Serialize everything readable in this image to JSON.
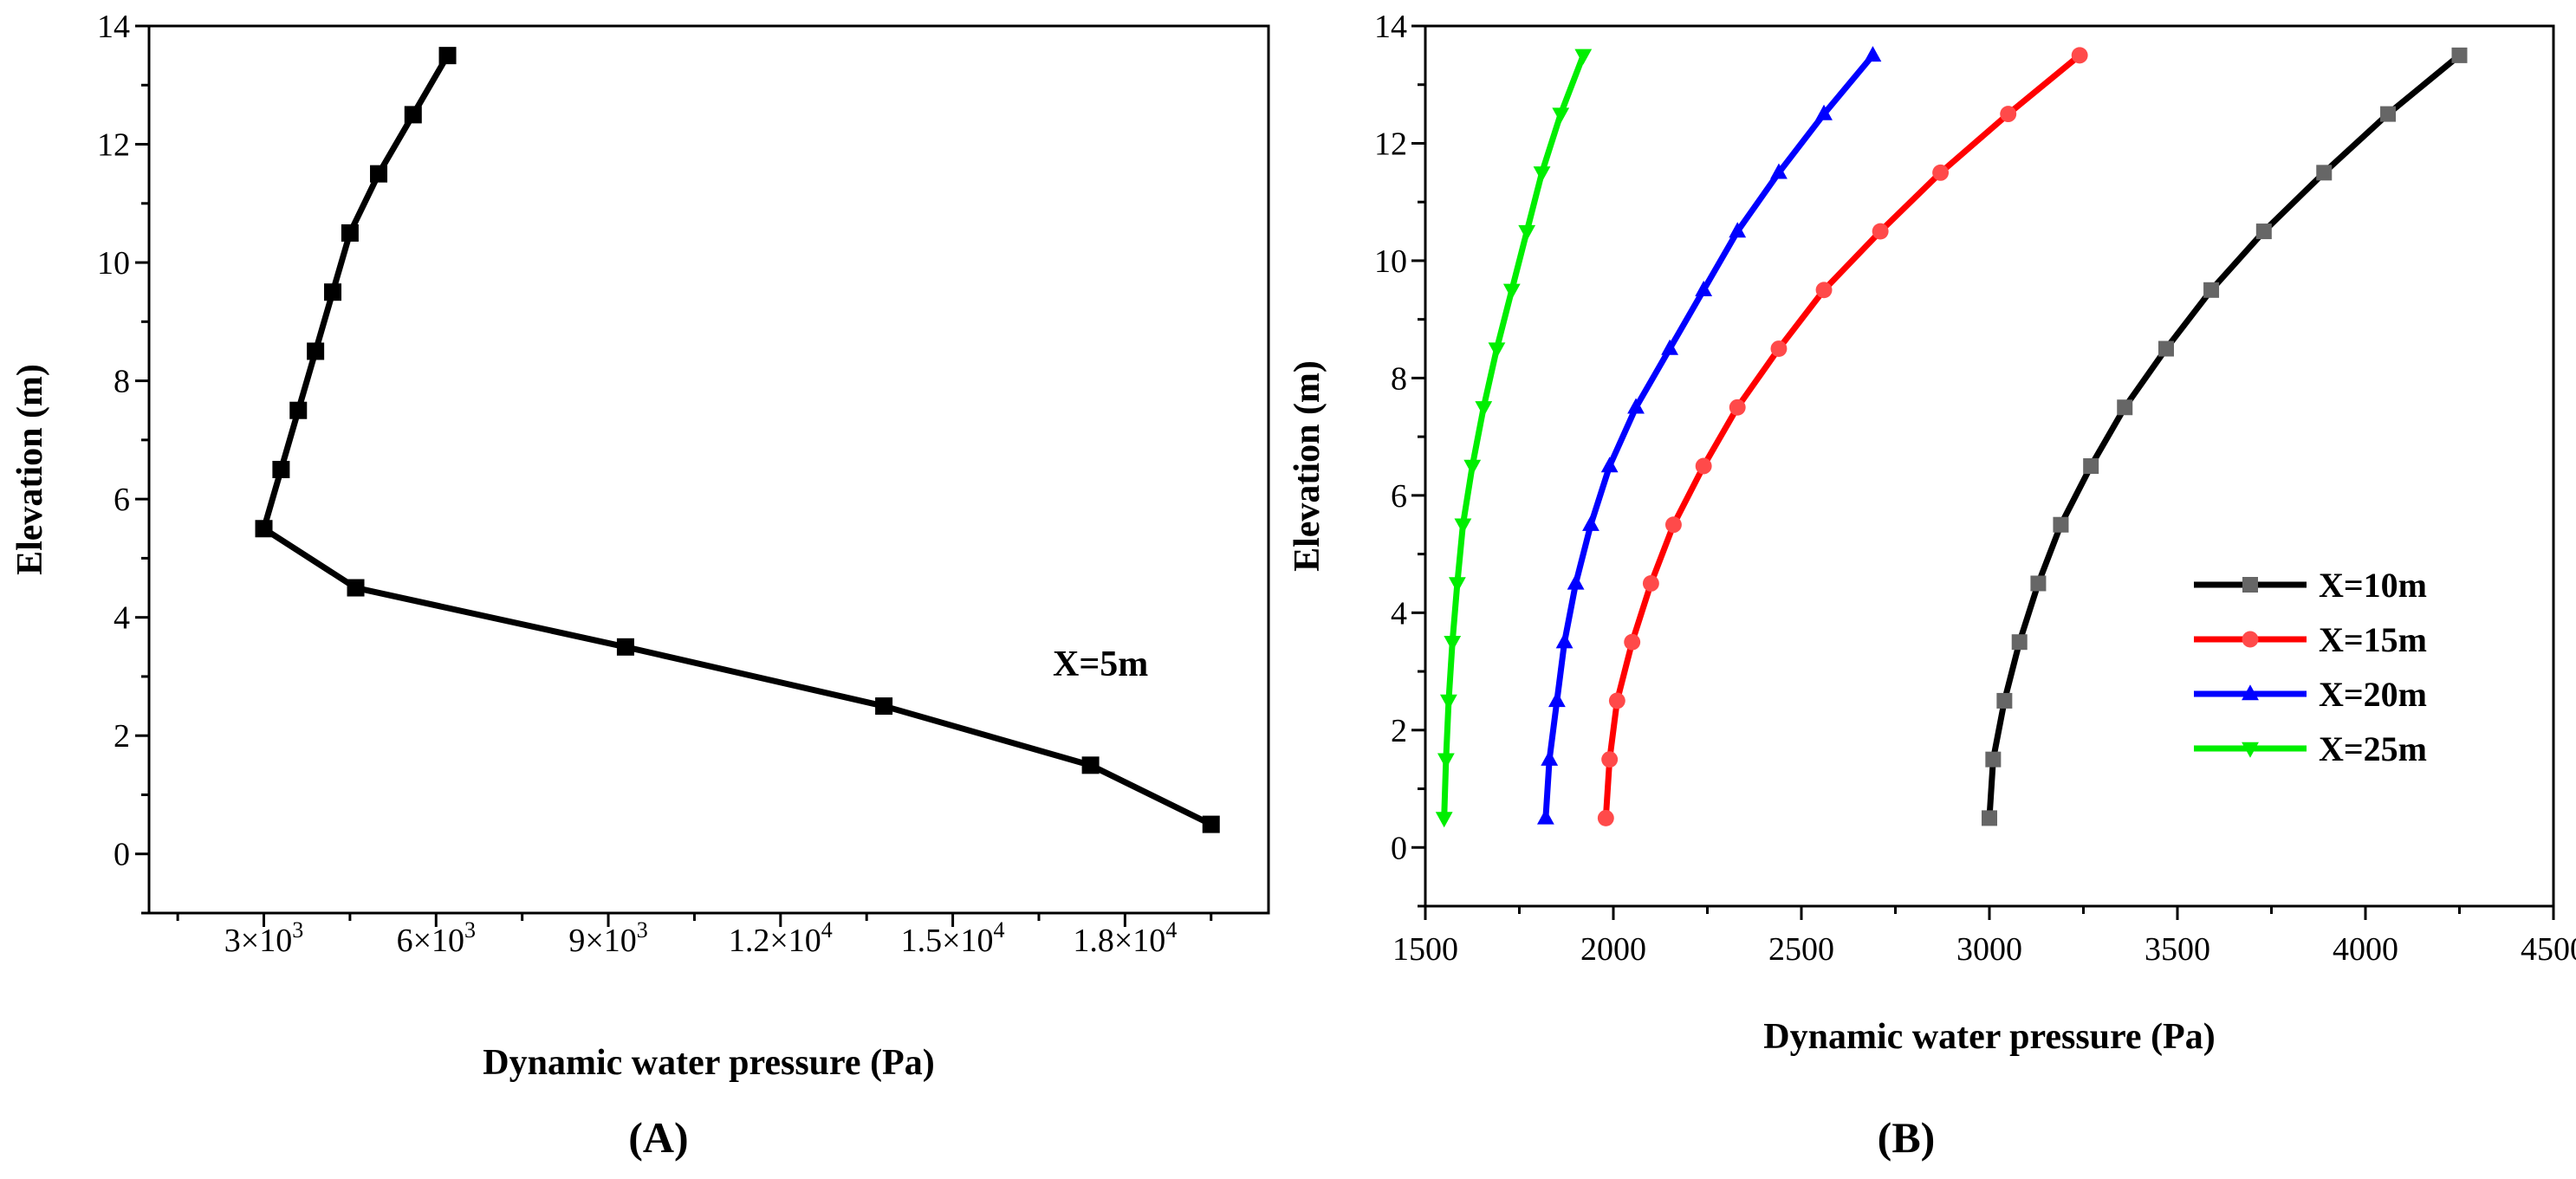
{
  "chart_data": [
    {
      "type": "line",
      "panel_label": "(A)",
      "title": "",
      "xlabel": "Dynamic water pressure (Pa)",
      "ylabel": "Elevation (m)",
      "xlim": [
        1000,
        20500
      ],
      "ylim": [
        -1,
        14
      ],
      "xticks": [
        3000,
        6000,
        9000,
        12000,
        15000,
        18000
      ],
      "xtick_labels": [
        {
          "base": "3×10",
          "exp": "3"
        },
        {
          "base": "6×10",
          "exp": "3"
        },
        {
          "base": "9×10",
          "exp": "3"
        },
        {
          "base": "1.2×10",
          "exp": "4"
        },
        {
          "base": "1.5×10",
          "exp": "4"
        },
        {
          "base": "1.8×10",
          "exp": "4"
        }
      ],
      "yticks": [
        0,
        2,
        4,
        6,
        8,
        10,
        12,
        14
      ],
      "ytick_labels": [
        "0",
        "2",
        "4",
        "6",
        "8",
        "10",
        "12",
        "14"
      ],
      "annotation": "X=5m",
      "series": [
        {
          "name": "X=5m",
          "color": "#000000",
          "marker": "square",
          "x": [
            19500,
            17400,
            13800,
            9300,
            4600,
            3000,
            3300,
            3600,
            3900,
            4200,
            4500,
            5000,
            5600,
            6200
          ],
          "y": [
            0.5,
            1.5,
            2.5,
            3.5,
            4.5,
            5.5,
            6.5,
            7.5,
            8.5,
            9.5,
            10.5,
            11.5,
            12.5,
            13.5
          ]
        }
      ]
    },
    {
      "type": "line",
      "panel_label": "(B)",
      "title": "",
      "xlabel": "Dynamic water pressure (Pa)",
      "ylabel": "Elevation (m)",
      "xlim": [
        1500,
        4500
      ],
      "ylim": [
        -1,
        14
      ],
      "xticks": [
        1500,
        2000,
        2500,
        3000,
        3500,
        4000,
        4500
      ],
      "xtick_labels": [
        "1500",
        "2000",
        "2500",
        "3000",
        "3500",
        "4000",
        "4500"
      ],
      "yticks": [
        0,
        2,
        4,
        6,
        8,
        10,
        12,
        14
      ],
      "ytick_labels": [
        "0",
        "2",
        "4",
        "6",
        "8",
        "10",
        "12",
        "14"
      ],
      "legend_position": "bottom-right",
      "series": [
        {
          "name": "X=10m",
          "color": "#000000",
          "marker_color": "#666666",
          "marker": "square",
          "x": [
            3000,
            3010,
            3040,
            3080,
            3130,
            3190,
            3270,
            3360,
            3470,
            3590,
            3730,
            3890,
            4060,
            4250
          ],
          "y": [
            0.5,
            1.5,
            2.5,
            3.5,
            4.5,
            5.5,
            6.5,
            7.5,
            8.5,
            9.5,
            10.5,
            11.5,
            12.5,
            13.5
          ]
        },
        {
          "name": "X=15m",
          "color": "#ff0000",
          "marker_color": "#ff4a4a",
          "marker": "circle",
          "x": [
            1980,
            1990,
            2010,
            2050,
            2100,
            2160,
            2240,
            2330,
            2440,
            2560,
            2710,
            2870,
            3050,
            3240
          ],
          "y": [
            0.5,
            1.5,
            2.5,
            3.5,
            4.5,
            5.5,
            6.5,
            7.5,
            8.5,
            9.5,
            10.5,
            11.5,
            12.5,
            13.5
          ]
        },
        {
          "name": "X=20m",
          "color": "#0000ff",
          "marker_color": "#0000ff",
          "marker": "triangle-up",
          "x": [
            1820,
            1830,
            1850,
            1870,
            1900,
            1940,
            1990,
            2060,
            2150,
            2240,
            2330,
            2440,
            2560,
            2690
          ],
          "y": [
            0.5,
            1.5,
            2.5,
            3.5,
            4.5,
            5.5,
            6.5,
            7.5,
            8.5,
            9.5,
            10.5,
            11.5,
            12.5,
            13.5
          ]
        },
        {
          "name": "X=25m",
          "color": "#00ee00",
          "marker_color": "#00ee00",
          "marker": "triangle-down",
          "x": [
            1550,
            1555,
            1562,
            1572,
            1585,
            1600,
            1625,
            1655,
            1690,
            1730,
            1770,
            1810,
            1860,
            1920
          ],
          "y": [
            0.5,
            1.5,
            2.5,
            3.5,
            4.5,
            5.5,
            6.5,
            7.5,
            8.5,
            9.5,
            10.5,
            11.5,
            12.5,
            13.5
          ]
        }
      ]
    }
  ]
}
